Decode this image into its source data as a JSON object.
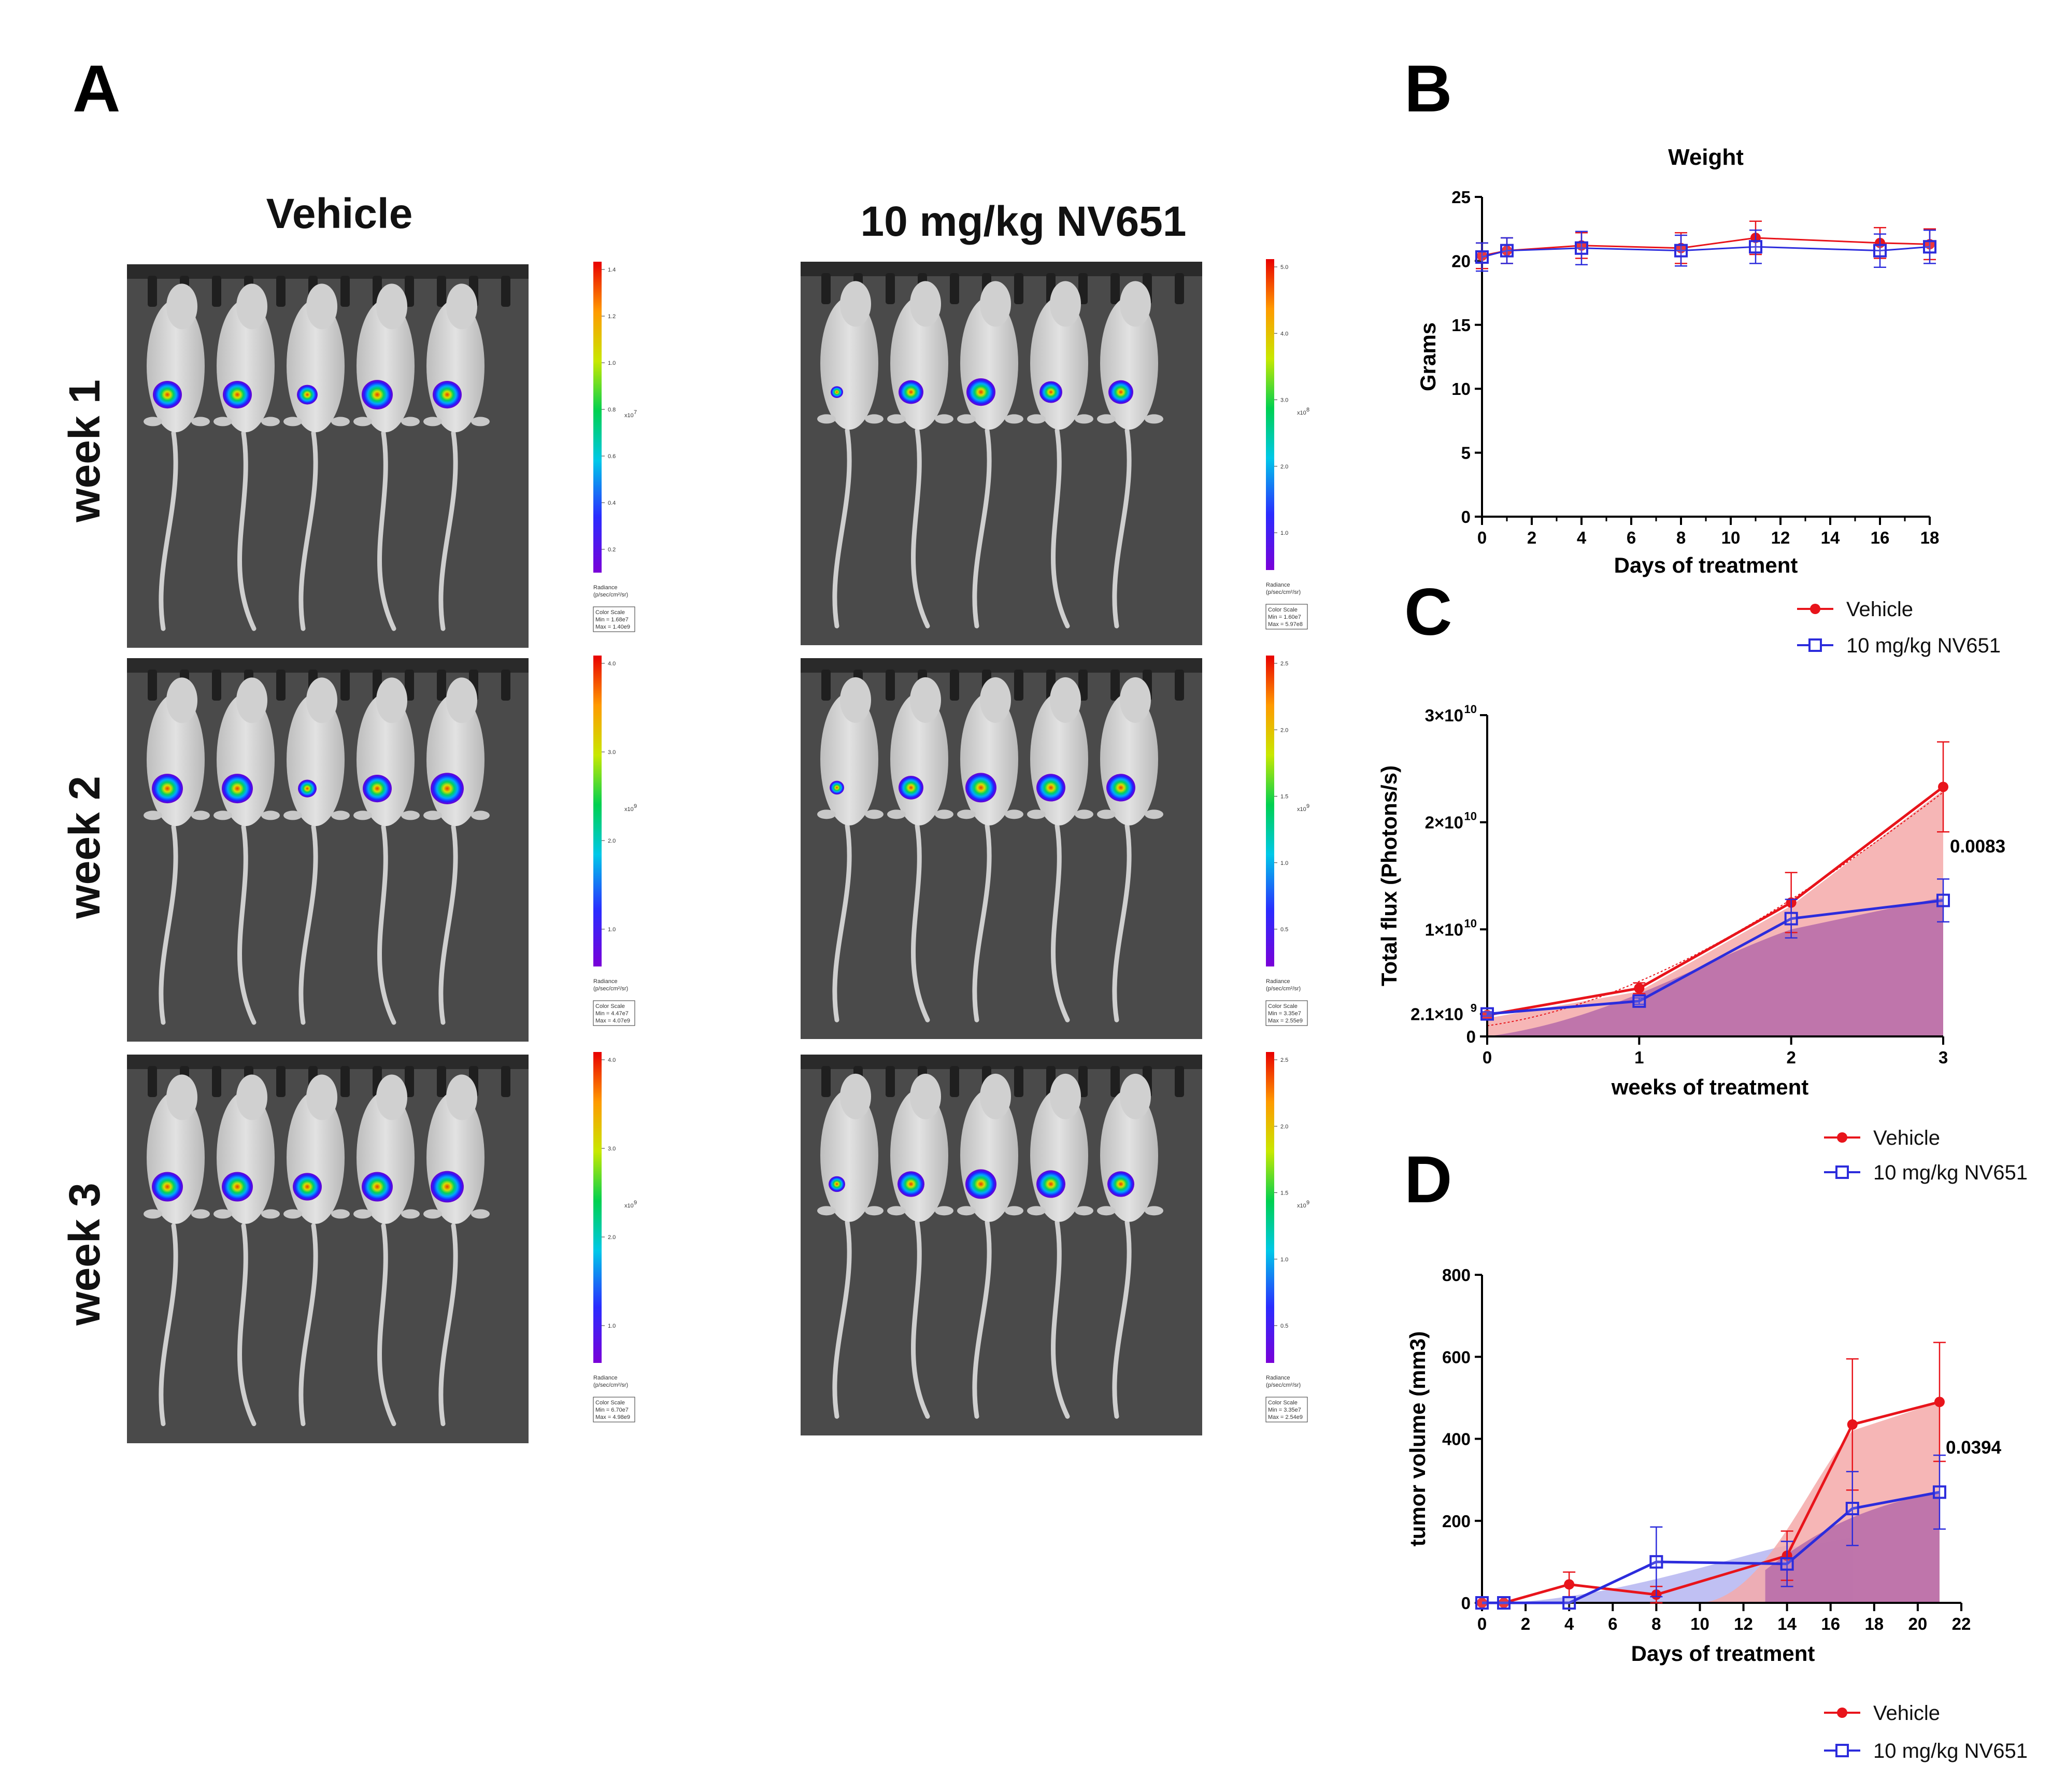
{
  "panels": {
    "A": "A",
    "B": "B",
    "C": "C",
    "D": "D"
  },
  "panel_a": {
    "columns": [
      "Vehicle",
      "10 mg/kg NV651"
    ],
    "rows": [
      "week 1",
      "week 2",
      "week 3"
    ],
    "colorbars": [
      {
        "ticks": [
          "1.4",
          "1.2",
          "1.0",
          "0.8",
          "0.6",
          "0.4",
          "0.2"
        ],
        "exponent": "x10",
        "exp_power": "7",
        "radiance_label": "Radiance",
        "radiance_units": "(p/sec/cm²/sr)",
        "scale_title": "Color Scale",
        "min_text": "Min = 1.68e7",
        "max_text": "Max = 1.40e9"
      },
      {
        "ticks": [
          "5.0",
          "4.0",
          "3.0",
          "2.0",
          "1.0"
        ],
        "exponent": "x10",
        "exp_power": "8",
        "radiance_label": "Radiance",
        "radiance_units": "(p/sec/cm²/sr)",
        "scale_title": "Color Scale",
        "min_text": "Min = 1.60e7",
        "max_text": "Max = 5.97e8"
      },
      {
        "ticks": [
          "4.0",
          "3.0",
          "2.0",
          "1.0"
        ],
        "exponent": "x10",
        "exp_power": "9",
        "radiance_label": "Radiance",
        "radiance_units": "(p/sec/cm²/sr)",
        "scale_title": "Color Scale",
        "min_text": "Min = 4.47e7",
        "max_text": "Max = 4.07e9"
      },
      {
        "ticks": [
          "2.5",
          "2.0",
          "1.5",
          "1.0",
          "0.5"
        ],
        "exponent": "x10",
        "exp_power": "9",
        "radiance_label": "Radiance",
        "radiance_units": "(p/sec/cm²/sr)",
        "scale_title": "Color Scale",
        "min_text": "Min = 3.35e7",
        "max_text": "Max = 2.55e9"
      },
      {
        "ticks": [
          "4.0",
          "3.0",
          "2.0",
          "1.0"
        ],
        "exponent": "x10",
        "exp_power": "9",
        "radiance_label": "Radiance",
        "radiance_units": "(p/sec/cm²/sr)",
        "scale_title": "Color Scale",
        "min_text": "Min = 6.70e7",
        "max_text": "Max = 4.98e9"
      },
      {
        "ticks": [
          "2.5",
          "2.0",
          "1.5",
          "1.0",
          "0.5"
        ],
        "exponent": "x10",
        "exp_power": "9",
        "radiance_label": "Radiance",
        "radiance_units": "(p/sec/cm²/sr)",
        "scale_title": "Color Scale",
        "min_text": "Min = 3.35e7",
        "max_text": "Max = 2.54e9"
      }
    ]
  },
  "colors": {
    "vehicle": "#e8141b",
    "nv651": "#2c2cdc",
    "vehicle_fill": "#f4a9a9",
    "overlap_fill": "#b56aa9",
    "nv651_fill": "#b9b9f2"
  },
  "chart_data": [
    {
      "id": "B",
      "type": "line",
      "title": "Weight",
      "xlabel": "Days of treatment",
      "ylabel": "Grams",
      "xlim": [
        0,
        18
      ],
      "ylim": [
        0,
        25
      ],
      "xticks": [
        "0",
        "2",
        "4",
        "6",
        "8",
        "10",
        "12",
        "14",
        "16",
        "18"
      ],
      "yticks": [
        "0",
        "5",
        "10",
        "15",
        "20",
        "25"
      ],
      "series": [
        {
          "name": "Vehicle",
          "x": [
            0,
            1,
            4,
            8,
            11,
            16,
            18
          ],
          "y": [
            20.4,
            20.8,
            21.2,
            21.0,
            21.8,
            21.4,
            21.3
          ],
          "err": [
            1.0,
            1.0,
            1.0,
            1.2,
            1.3,
            1.2,
            1.2
          ]
        },
        {
          "name": "10 mg/kg NV651",
          "x": [
            0,
            1,
            4,
            8,
            11,
            16,
            18
          ],
          "y": [
            20.3,
            20.8,
            21.0,
            20.8,
            21.1,
            20.8,
            21.1
          ],
          "err": [
            1.1,
            1.0,
            1.3,
            1.2,
            1.3,
            1.3,
            1.3
          ]
        }
      ],
      "legend": [
        "Vehicle",
        "10 mg/kg NV651"
      ]
    },
    {
      "id": "C",
      "type": "line",
      "title": "",
      "xlabel": "weeks  of treatment",
      "ylabel": "Total flux (Photons/s)",
      "xlim": [
        0,
        3
      ],
      "ylim": [
        0,
        30000000000.0
      ],
      "xticks": [
        "0",
        "1",
        "2",
        "3"
      ],
      "ytick_labels": [
        {
          "base": "0",
          "exp": "",
          "value": 0
        },
        {
          "base": "2.1×10",
          "exp": "9",
          "value": 2100000000.0
        },
        {
          "base": "1×10",
          "exp": "10",
          "value": 10000000000.0
        },
        {
          "base": "2×10",
          "exp": "10",
          "value": 20000000000.0
        },
        {
          "base": "3×10",
          "exp": "10",
          "value": 30000000000.0
        }
      ],
      "series": [
        {
          "name": "Vehicle",
          "x": [
            0,
            1,
            2,
            3
          ],
          "y": [
            2000000000.0,
            4500000000.0,
            12500000000.0,
            23300000000.0
          ],
          "err": [
            300000000.0,
            500000000.0,
            2800000000.0,
            4200000000.0
          ]
        },
        {
          "name": "10 mg/kg NV651",
          "x": [
            0,
            1,
            2,
            3
          ],
          "y": [
            2100000000.0,
            3300000000.0,
            11000000000.0,
            12700000000.0
          ],
          "err": [
            200000000.0,
            300000000.0,
            1800000000.0,
            2000000000.0
          ]
        }
      ],
      "annotation": "0.0083"
    },
    {
      "id": "D",
      "type": "line",
      "title": "",
      "xlabel": "Days of treatment",
      "ylabel": "tumor volume (mm3)",
      "xlim": [
        0,
        22
      ],
      "ylim": [
        0,
        800
      ],
      "xticks": [
        "0",
        "2",
        "4",
        "6",
        "8",
        "10",
        "12",
        "14",
        "16",
        "18",
        "20",
        "22"
      ],
      "yticks": [
        "0",
        "200",
        "400",
        "600",
        "800"
      ],
      "series": [
        {
          "name": "Vehicle",
          "x": [
            0,
            1,
            4,
            8,
            14,
            17,
            21
          ],
          "y": [
            0,
            0,
            45,
            20,
            115,
            435,
            490
          ],
          "err": [
            0,
            0,
            30,
            20,
            60,
            160,
            145
          ]
        },
        {
          "name": "10 mg/kg NV651",
          "x": [
            0,
            1,
            4,
            8,
            14,
            17,
            21
          ],
          "y": [
            0,
            0,
            0,
            100,
            95,
            230,
            270
          ],
          "err": [
            0,
            0,
            0,
            85,
            55,
            90,
            90
          ]
        }
      ],
      "legend_top": [
        "Vehicle",
        "10 mg/kg NV651"
      ],
      "legend_bottom": [
        "Vehicle",
        "10 mg/kg NV651"
      ],
      "annotation": "0.0394"
    }
  ]
}
